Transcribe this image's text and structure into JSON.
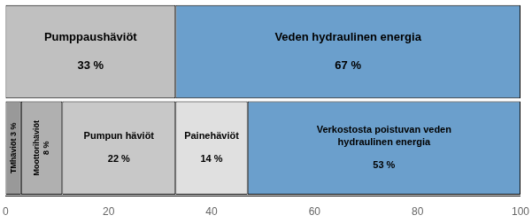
{
  "chart_data": {
    "type": "bar",
    "orientation": "horizontal",
    "stacked": true,
    "categories": [
      null,
      null
    ],
    "series": [
      {
        "color": "#c0c0c0",
        "values": [
          33,
          null
        ],
        "value_labels": [
          "Pumppaushäviöt\n\n33 %",
          null
        ]
      },
      {
        "color": "#6b9fcc",
        "values": [
          67,
          null
        ],
        "value_labels": [
          "Veden hydraulinen energia\n\n67 %",
          null
        ]
      },
      {
        "color": "#999999",
        "values": [
          null,
          3
        ],
        "value_labels": [
          null,
          "TMhäviöt 3 %"
        ]
      },
      {
        "color": "#b0b0b0",
        "values": [
          null,
          8
        ],
        "value_labels": [
          null,
          "Moottorihäviöt\n8 %"
        ]
      },
      {
        "color": "#c8c8c8",
        "values": [
          null,
          22
        ],
        "value_labels": [
          null,
          "Pumpun häviöt\n\n22 %"
        ]
      },
      {
        "color": "#e0e0e0",
        "values": [
          null,
          14
        ],
        "value_labels": [
          null,
          "Painehäviöt\n\n14 %"
        ]
      },
      {
        "color": "#6b9fcc",
        "values": [
          null,
          53
        ],
        "value_labels": [
          null,
          "Verkostosta poistuvan veden\nhydraulinen energia\n\n53 %"
        ]
      }
    ],
    "data_labels": true,
    "xlim": [
      0,
      100
    ],
    "xticks": [
      0,
      20,
      40,
      60,
      80,
      100
    ],
    "tick_labels": "x",
    "grid": false
  }
}
